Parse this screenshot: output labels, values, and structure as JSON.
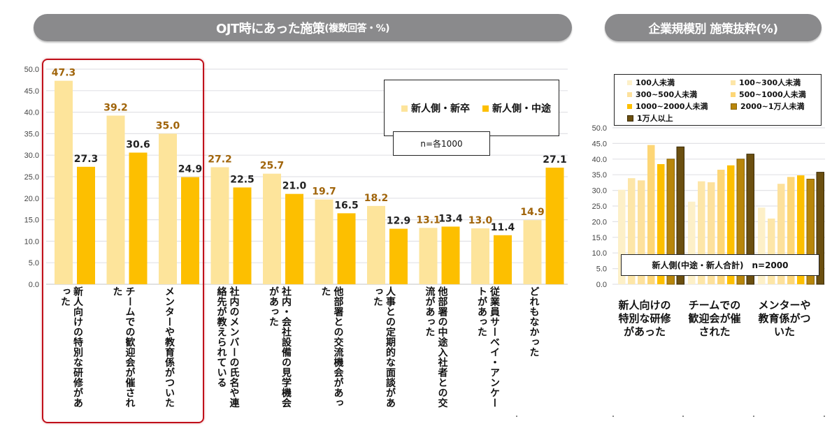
{
  "left_title": {
    "main": "OJT時にあった施策",
    "sub": "(複数回答・%)"
  },
  "right_title": "企業規模別 施策抜粋(%)",
  "colors": {
    "new_grad": "#fde49b",
    "mid_career": "#fdbf00",
    "highlight_box": "#c0101a",
    "size": [
      "#fdf0c8",
      "#fde6a8",
      "#fde19c",
      "#fdd676",
      "#fdbf00",
      "#b8860b",
      "#6b4f10"
    ]
  },
  "chart_data": [
    {
      "type": "bar",
      "title": "OJT時にあった施策(複数回答・%)",
      "xlabel": "",
      "ylabel": "",
      "ylim": [
        0,
        50
      ],
      "yticks": [
        "0.0",
        "5.0",
        "10.0",
        "15.0",
        "20.0",
        "25.0",
        "30.0",
        "35.0",
        "40.0",
        "45.0",
        "50.0"
      ],
      "grid": true,
      "legend_position": "top-right",
      "note": "n=各1000",
      "categories": [
        "新人向けの特別な研修があった",
        "チームでの歓迎会が催された",
        "メンターや教育係がついた",
        "社内のメンバーの氏名や連絡先が教えられている",
        "社内・会社設備の見学機会があった",
        "他部署との交流機会があった",
        "人事との定期的な面談があった",
        "他部署の中途入社者との交流があった",
        "従業員サーベイ・アンケートがあった",
        "どれもなかった"
      ],
      "series": [
        {
          "name": "新人側・新卒",
          "values": [
            47.3,
            39.2,
            35.0,
            27.2,
            25.7,
            19.7,
            18.2,
            13.1,
            13.0,
            14.9
          ]
        },
        {
          "name": "新人側・中途",
          "values": [
            27.3,
            30.6,
            24.9,
            22.5,
            21.0,
            16.5,
            12.9,
            13.4,
            11.4,
            27.1
          ]
        }
      ],
      "data_labels": {
        "新人側・新卒": [
          "47.3",
          "39.2",
          "35.0",
          "27.2",
          "25.7",
          "19.7",
          "18.2",
          "13.1",
          "13.0",
          "14.9"
        ],
        "新人側・中途": [
          "27.3",
          "30.6",
          "24.9",
          "22.5",
          "21.0",
          "16.5",
          "12.9",
          "13.4",
          "11.4",
          "27.1"
        ]
      },
      "highlighted_categories": [
        0,
        1,
        2
      ]
    },
    {
      "type": "bar",
      "title": "企業規模別 施策抜粋(%)",
      "xlabel": "",
      "ylabel": "",
      "ylim": [
        0,
        50
      ],
      "yticks": [
        "0.0",
        "5.0",
        "10.0",
        "15.0",
        "20.0",
        "25.0",
        "30.0",
        "35.0",
        "40.0",
        "45.0",
        "50.0"
      ],
      "grid": true,
      "legend_position": "top",
      "note": "新人側(中途・新人合計)　n=2000",
      "categories": [
        "新人向けの特別な研修があった",
        "チームでの歓迎会が催された",
        "メンターや教育係がついた"
      ],
      "category_display": [
        [
          "新人向けの",
          "特別な研修",
          "があった"
        ],
        [
          "チームでの",
          "歓迎会が催",
          "された"
        ],
        [
          "メンターや",
          "教育係がつ",
          "いた"
        ]
      ],
      "series": [
        {
          "name": "100人未満",
          "values": [
            30.2,
            26.4,
            24.5
          ]
        },
        {
          "name": "100~300人未満",
          "values": [
            33.9,
            32.9,
            21.0
          ]
        },
        {
          "name": "300~500人未満",
          "values": [
            33.2,
            32.6,
            32.1
          ]
        },
        {
          "name": "500~1000人未満",
          "values": [
            44.5,
            36.6,
            34.3
          ]
        },
        {
          "name": "1000~2000人未満",
          "values": [
            38.4,
            38.0,
            34.8
          ]
        },
        {
          "name": "2000~1万人未満",
          "values": [
            40.0,
            40.0,
            33.6
          ]
        },
        {
          "name": "1万人以上",
          "values": [
            43.9,
            41.6,
            35.8
          ]
        }
      ]
    }
  ]
}
